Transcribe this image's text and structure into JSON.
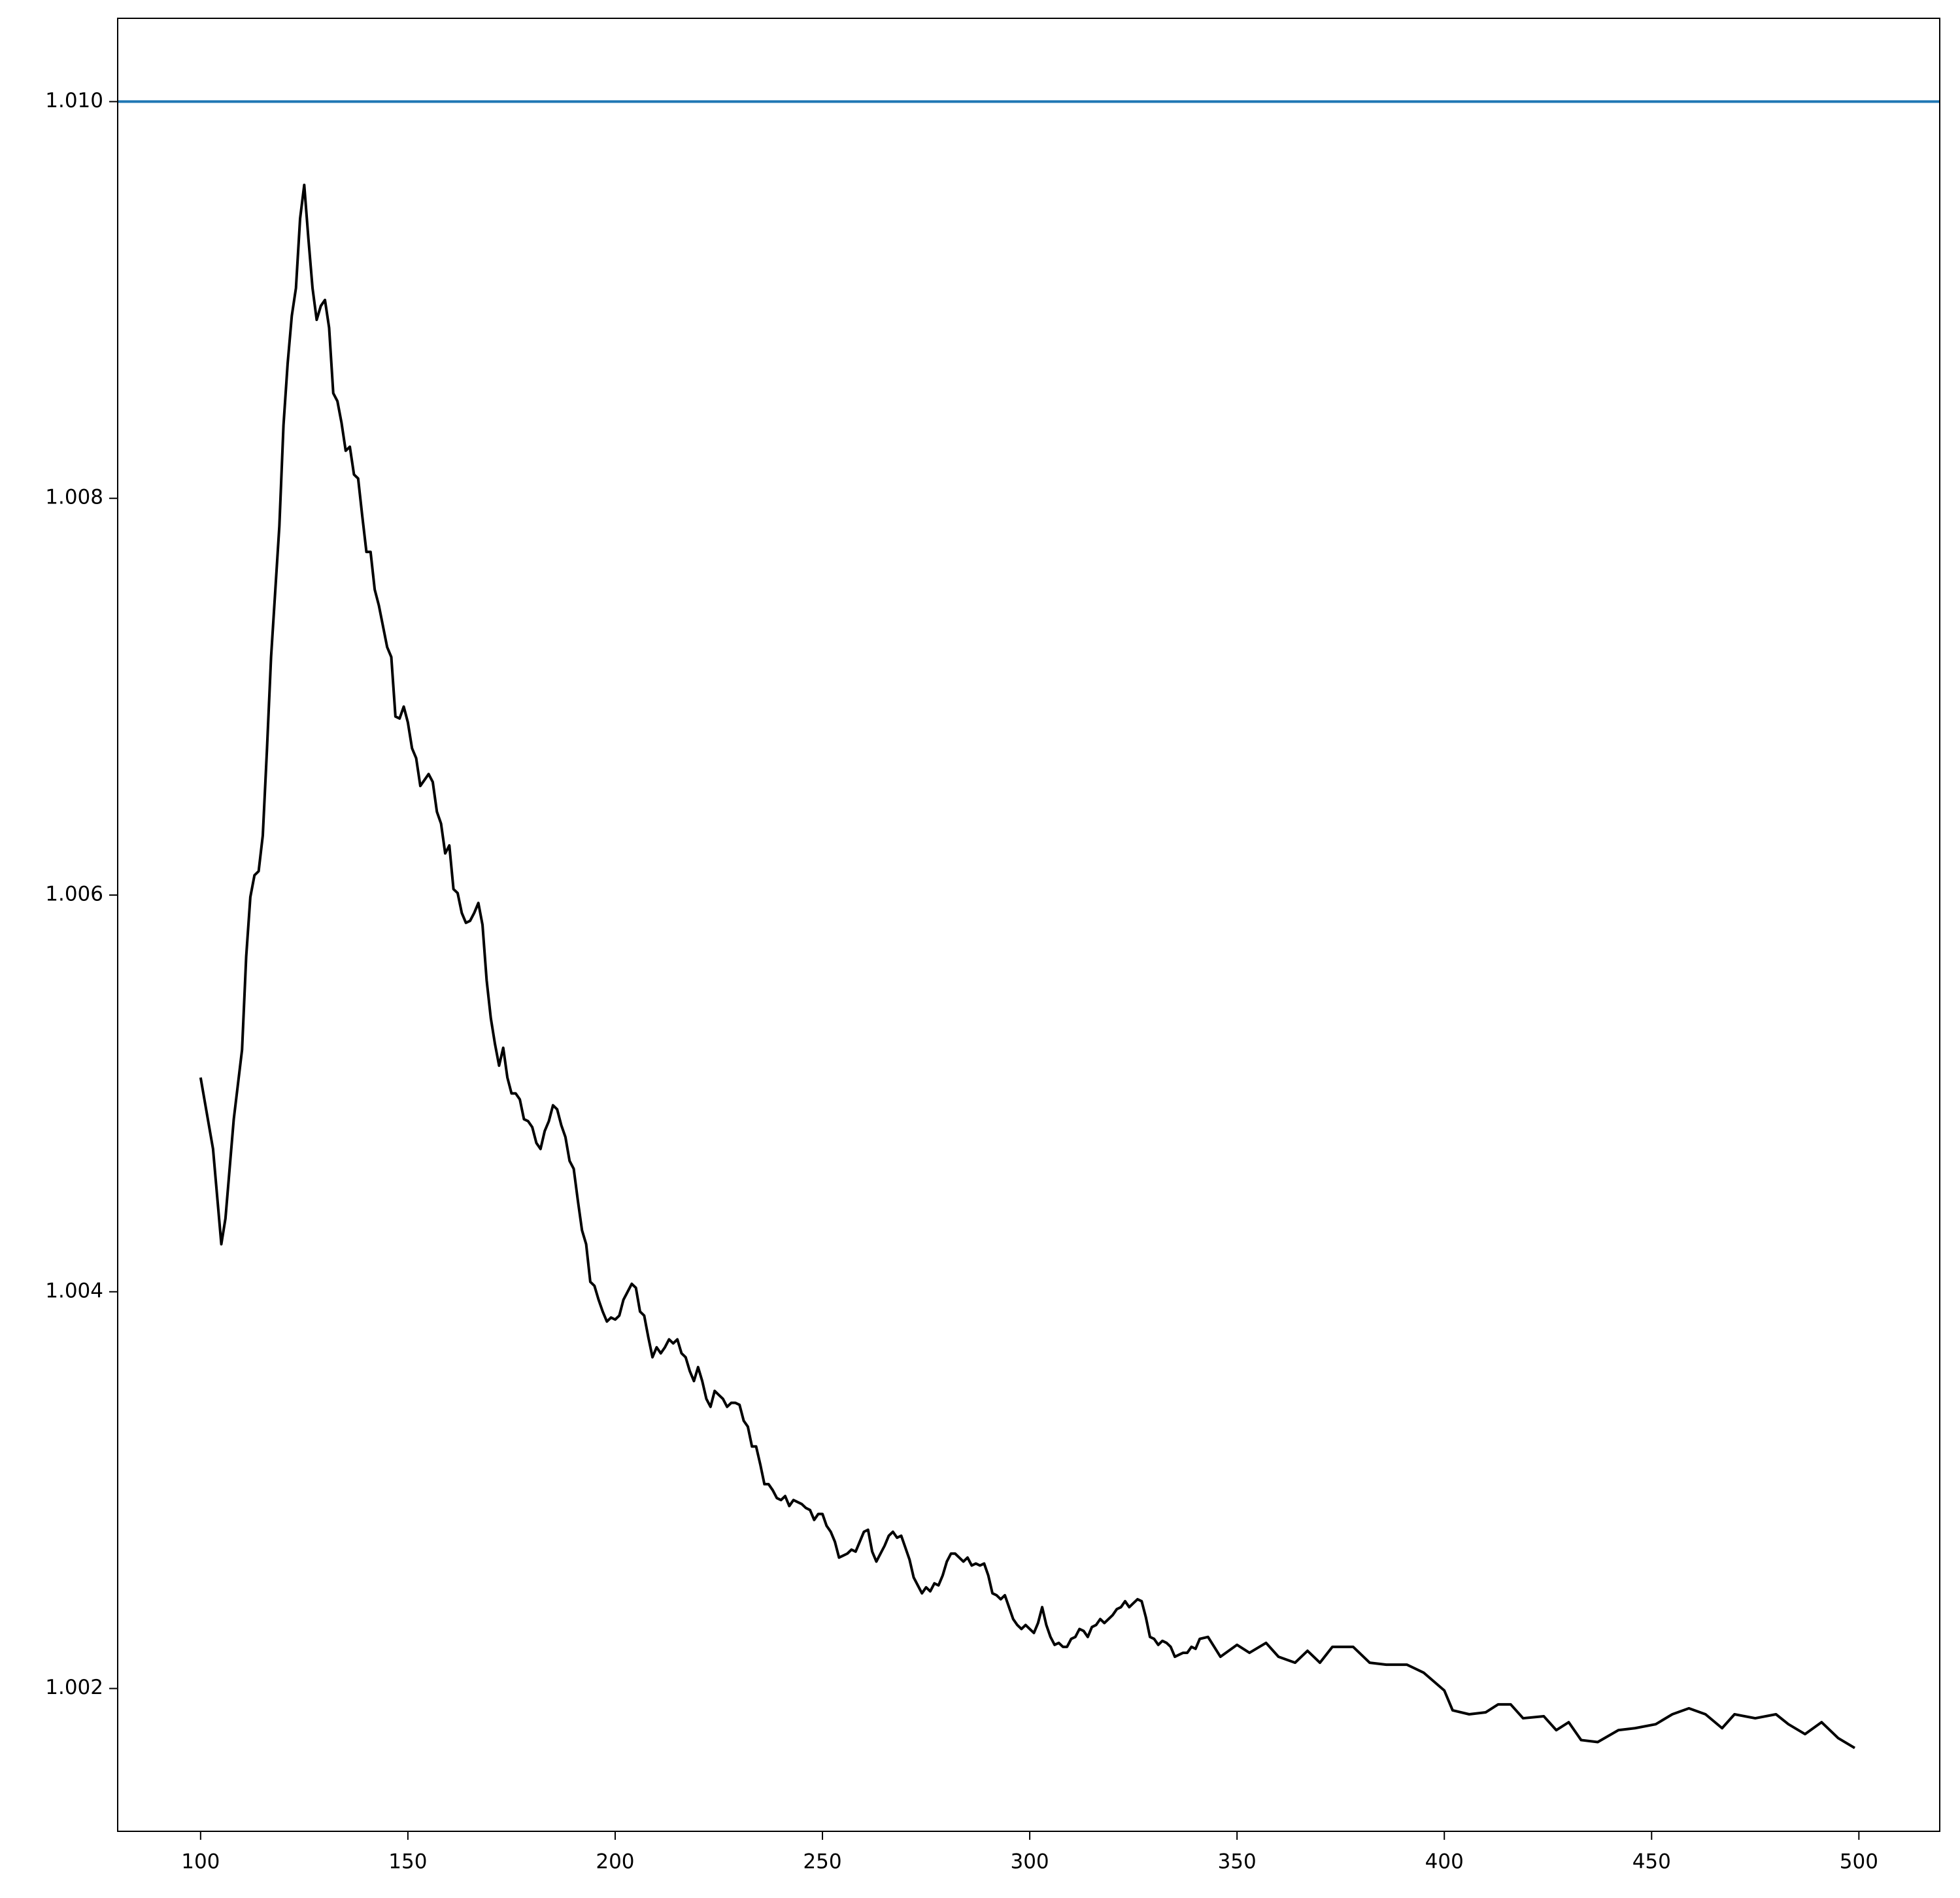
{
  "chart_data": {
    "type": "line",
    "x": [
      100,
      103,
      105,
      106,
      108,
      110,
      111,
      112,
      113,
      114,
      115,
      116,
      117,
      119,
      120,
      121,
      122,
      123,
      124,
      125,
      126,
      127,
      128,
      129,
      130,
      131,
      132,
      133,
      134,
      135,
      136,
      137,
      138,
      139,
      140,
      141,
      142,
      143,
      145,
      146,
      147,
      148,
      149,
      150,
      151,
      152,
      153,
      155,
      156,
      157,
      158,
      159,
      160,
      161,
      162,
      163,
      164,
      165,
      166,
      167,
      168,
      169,
      170,
      171,
      172,
      173,
      174,
      175,
      176,
      177,
      178,
      179,
      180,
      181,
      182,
      183,
      184,
      185,
      186,
      187,
      188,
      189,
      190,
      191,
      192,
      193,
      194,
      195,
      196,
      197,
      198,
      199,
      200,
      201,
      202,
      203,
      204,
      205,
      206,
      207,
      208,
      209,
      210,
      211,
      212,
      213,
      214,
      215,
      216,
      217,
      218,
      219,
      220,
      221,
      222,
      223,
      224,
      225,
      226,
      227,
      228,
      229,
      230,
      231,
      232,
      233,
      234,
      235,
      236,
      237,
      238,
      239,
      240,
      241,
      242,
      243,
      245,
      246,
      247,
      248,
      249,
      250,
      251,
      252,
      253,
      254,
      255,
      256,
      257,
      258,
      259,
      260,
      261,
      262,
      263,
      264,
      265,
      266,
      267,
      268,
      269,
      270,
      271,
      272,
      273,
      274,
      275,
      276,
      277,
      278,
      279,
      280,
      281,
      282,
      283,
      284,
      285,
      286,
      287,
      288,
      289,
      290,
      291,
      292,
      293,
      294,
      295,
      296,
      297,
      298,
      299,
      300,
      301,
      302,
      303,
      304,
      305,
      306,
      307,
      308,
      309,
      310,
      311,
      312,
      313,
      314,
      315,
      316,
      317,
      318,
      319,
      320,
      321,
      322,
      323,
      324,
      325,
      326,
      327,
      328,
      329,
      330,
      331,
      332,
      333,
      334,
      335,
      336,
      337,
      338,
      339,
      340,
      341,
      343,
      346,
      350,
      353,
      357,
      360,
      364,
      367,
      370,
      373,
      378,
      382,
      386,
      391,
      395,
      400,
      402,
      406,
      410,
      413,
      416,
      419,
      424,
      427,
      430,
      433,
      437,
      442,
      446,
      451,
      455,
      459,
      463,
      467,
      470,
      475,
      480,
      483,
      487,
      491,
      495,
      499
    ],
    "series": [
      {
        "color": "#000000",
        "values": [
          1.00508,
          1.00472,
          1.00424,
          1.00437,
          1.00487,
          1.00522,
          1.00569,
          1.00599,
          1.0061,
          1.00612,
          1.0063,
          1.00673,
          1.0072,
          1.00786,
          1.00837,
          1.00868,
          1.00892,
          1.00906,
          1.00941,
          1.00958,
          1.00931,
          1.00906,
          1.0089,
          1.00897,
          1.009,
          1.00886,
          1.00853,
          1.00849,
          1.00838,
          1.00824,
          1.00826,
          1.00812,
          1.0081,
          1.00791,
          1.00773,
          1.00773,
          1.00754,
          1.00746,
          1.00725,
          1.0072,
          1.0069,
          1.00689,
          1.00695,
          1.00687,
          1.00674,
          1.00669,
          1.00655,
          1.00661,
          1.00657,
          1.00642,
          1.00636,
          1.00621,
          1.00625,
          1.00603,
          1.00601,
          1.00591,
          1.00586,
          1.00587,
          1.00591,
          1.00596,
          1.00585,
          1.00557,
          1.00538,
          1.00525,
          1.00514,
          1.00523,
          1.00508,
          1.005,
          1.005,
          1.00497,
          1.00487,
          1.00486,
          1.00483,
          1.00475,
          1.00472,
          1.00481,
          1.00486,
          1.00494,
          1.00492,
          1.00484,
          1.00478,
          1.00466,
          1.00462,
          1.00446,
          1.00431,
          1.00424,
          1.00405,
          1.00403,
          1.00396,
          1.0039,
          1.00385,
          1.00387,
          1.00386,
          1.00388,
          1.00396,
          1.004,
          1.00404,
          1.00402,
          1.0039,
          1.00388,
          1.00377,
          1.00367,
          1.00372,
          1.00369,
          1.00372,
          1.00376,
          1.00374,
          1.00376,
          1.00369,
          1.00367,
          1.0036,
          1.00355,
          1.00362,
          1.00355,
          1.00346,
          1.00342,
          1.0035,
          1.00348,
          1.00346,
          1.00342,
          1.00344,
          1.00344,
          1.00343,
          1.00335,
          1.00332,
          1.00322,
          1.00322,
          1.00313,
          1.00303,
          1.00303,
          1.003,
          1.00296,
          1.00295,
          1.00297,
          1.00292,
          1.00295,
          1.00293,
          1.00291,
          1.0029,
          1.00285,
          1.00288,
          1.00288,
          1.00282,
          1.00279,
          1.00274,
          1.00266,
          1.00267,
          1.00268,
          1.0027,
          1.00269,
          1.00274,
          1.00279,
          1.0028,
          1.00269,
          1.00264,
          1.00268,
          1.00272,
          1.00277,
          1.00279,
          1.00276,
          1.00277,
          1.00271,
          1.00265,
          1.00256,
          1.00252,
          1.00248,
          1.00251,
          1.00249,
          1.00253,
          1.00252,
          1.00257,
          1.00264,
          1.00268,
          1.00268,
          1.00266,
          1.00264,
          1.00266,
          1.00262,
          1.00263,
          1.00262,
          1.00263,
          1.00257,
          1.00248,
          1.00247,
          1.00245,
          1.00247,
          1.00241,
          1.00235,
          1.00232,
          1.0023,
          1.00232,
          1.0023,
          1.00228,
          1.00233,
          1.00241,
          1.00232,
          1.00226,
          1.00222,
          1.00223,
          1.00221,
          1.00221,
          1.00225,
          1.00226,
          1.0023,
          1.00229,
          1.00226,
          1.00231,
          1.00232,
          1.00235,
          1.00233,
          1.00235,
          1.00237,
          1.0024,
          1.00241,
          1.00244,
          1.00241,
          1.00243,
          1.00245,
          1.00244,
          1.00236,
          1.00226,
          1.00225,
          1.00222,
          1.00224,
          1.00223,
          1.00221,
          1.00216,
          1.00217,
          1.00218,
          1.00218,
          1.00221,
          1.0022,
          1.00225,
          1.00226,
          1.00216,
          1.00222,
          1.00218,
          1.00223,
          1.00216,
          1.00213,
          1.00219,
          1.00213,
          1.00221,
          1.00221,
          1.00213,
          1.00212,
          1.00212,
          1.00208,
          1.00199,
          1.00189,
          1.00187,
          1.00188,
          1.00192,
          1.00192,
          1.00185,
          1.00186,
          1.00179,
          1.00183,
          1.00174,
          1.00173,
          1.00179,
          1.0018,
          1.00182,
          1.00187,
          1.0019,
          1.00187,
          1.0018,
          1.00187,
          1.00185,
          1.00187,
          1.00182,
          1.00177,
          1.00183,
          1.00175,
          1.0017
        ]
      }
    ],
    "hline": {
      "value": 1.01,
      "color": "#1f77b4"
    },
    "xlim": [
      80,
      519.5
    ],
    "ylim": [
      1.00128,
      1.01042
    ],
    "xticks": [
      100,
      150,
      200,
      250,
      300,
      350,
      400,
      450,
      500
    ],
    "yticks": [
      1.002,
      1.004,
      1.006,
      1.008,
      {
        "value": 1.01,
        "label": "1.010"
      }
    ]
  }
}
